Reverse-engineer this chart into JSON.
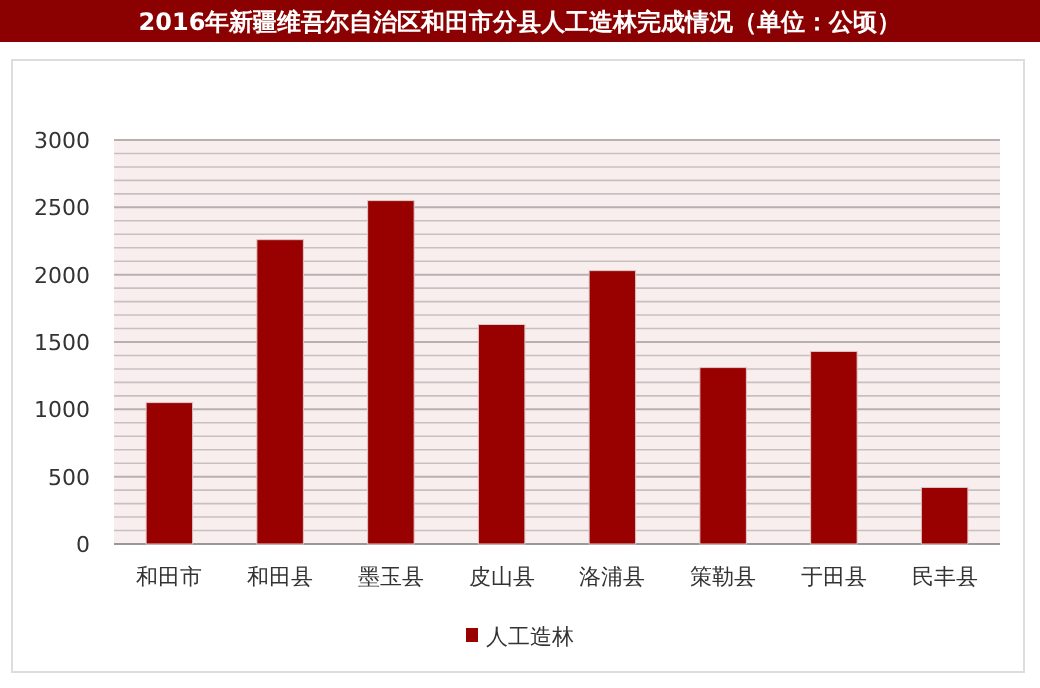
{
  "chart_data": {
    "type": "bar",
    "title": "2016年新疆维吾尔自治区和田市分县人工造林完成情况（单位：公顷）",
    "categories": [
      "和田市",
      "和田县",
      "墨玉县",
      "皮山县",
      "洛浦县",
      "策勒县",
      "于田县",
      "民丰县"
    ],
    "series": [
      {
        "name": "人工造林",
        "color": "#990000",
        "values": [
          1050,
          2260,
          2550,
          1630,
          2030,
          1310,
          1430,
          420
        ]
      }
    ],
    "ylim": [
      0,
      3000
    ],
    "yticks": [
      0,
      500,
      1000,
      1500,
      2000,
      2500,
      3000
    ],
    "grid": "y",
    "legend": "bottom"
  }
}
